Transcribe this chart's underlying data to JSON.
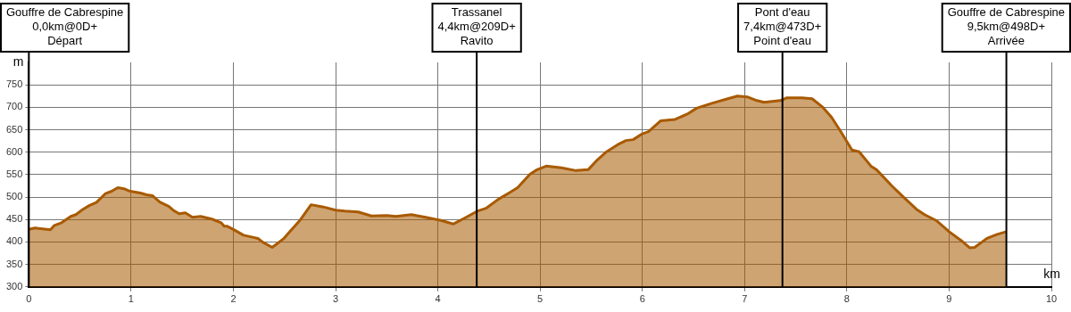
{
  "chart_data": {
    "type": "area",
    "xlabel": "km",
    "ylabel": "m",
    "xlim": [
      0,
      10
    ],
    "xticks": [
      0,
      1,
      2,
      3,
      4,
      5,
      6,
      7,
      8,
      9,
      10
    ],
    "ylim": [
      300,
      800
    ],
    "yticks": [
      300,
      350,
      400,
      450,
      500,
      550,
      600,
      650,
      700,
      750
    ],
    "grid": true,
    "legend": false,
    "marker": "none",
    "series": [
      {
        "color": "#a85a00",
        "x": [
          0,
          0.06,
          0.21,
          0.25,
          0.32,
          0.41,
          0.46,
          0.53,
          0.59,
          0.66,
          0.75,
          0.81,
          0.87,
          0.94,
          0.99,
          1.09,
          1.15,
          1.21,
          1.28,
          1.37,
          1.41,
          1.47,
          1.53,
          1.6,
          1.68,
          1.79,
          1.88,
          1.91,
          1.94,
          2.0,
          2.1,
          2.18,
          2.24,
          2.29,
          2.38,
          2.49,
          2.56,
          2.65,
          2.76,
          2.88,
          3.0,
          3.09,
          3.22,
          3.35,
          3.5,
          3.59,
          3.74,
          3.88,
          4.03,
          4.15,
          4.26,
          4.38,
          4.47,
          4.59,
          4.71,
          4.78,
          4.9,
          4.97,
          5.06,
          5.21,
          5.35,
          5.47,
          5.56,
          5.65,
          5.76,
          5.84,
          5.91,
          6.0,
          6.06,
          6.18,
          6.32,
          6.44,
          6.53,
          6.68,
          6.82,
          6.93,
          7.03,
          7.12,
          7.19,
          7.35,
          7.41,
          7.56,
          7.66,
          7.76,
          7.85,
          7.94,
          8.05,
          8.12,
          8.24,
          8.29,
          8.44,
          8.54,
          8.68,
          8.76,
          8.88,
          9.0,
          9.12,
          9.2,
          9.25,
          9.37,
          9.47,
          9.56
        ],
        "values": [
          428,
          431,
          427,
          437,
          443,
          457,
          461,
          473,
          481,
          488,
          508,
          513,
          521,
          518,
          513,
          509,
          505,
          503,
          489,
          479,
          471,
          463,
          465,
          455,
          457,
          451,
          443,
          435,
          435,
          428,
          415,
          411,
          408,
          399,
          388,
          407,
          425,
          448,
          483,
          478,
          471,
          469,
          467,
          458,
          459,
          457,
          461,
          455,
          448,
          440,
          453,
          468,
          475,
          495,
          511,
          521,
          551,
          561,
          569,
          565,
          559,
          561,
          583,
          601,
          617,
          626,
          628,
          641,
          646,
          670,
          673,
          685,
          698,
          709,
          718,
          725,
          723,
          715,
          711,
          715,
          721,
          721,
          719,
          701,
          678,
          646,
          605,
          601,
          568,
          561,
          525,
          503,
          473,
          461,
          447,
          423,
          403,
          387,
          388,
          408,
          417,
          423
        ]
      }
    ],
    "ref_lines": [
      {
        "axis": "x",
        "value": 0,
        "label": "Gouffre de Cabrespine\n0,0km@0D+\nDépart"
      },
      {
        "axis": "x",
        "value": 4.38,
        "label": "Trassanel\n4,4km@209D+\nRavito"
      },
      {
        "axis": "x",
        "value": 7.37,
        "label": "Pont d'eau\n7,4km@473D+\nPoint d'eau"
      },
      {
        "axis": "x",
        "value": 9.56,
        "label": "Gouffre de Cabrespine\n9,5km@498D+\nArrivée"
      }
    ]
  }
}
